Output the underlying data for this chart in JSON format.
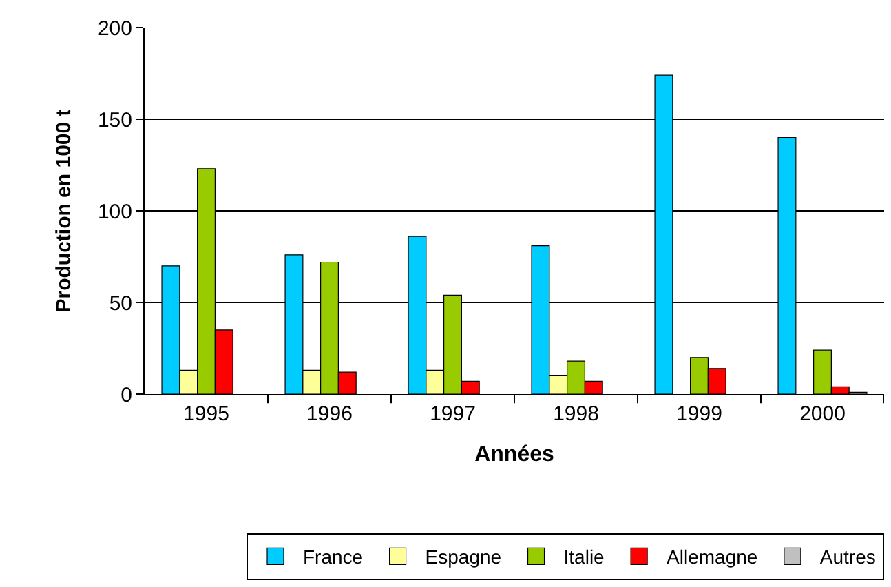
{
  "chart_data": {
    "type": "bar",
    "xlabel": "Années",
    "ylabel": "Production en 1000 t",
    "categories": [
      "1995",
      "1996",
      "1997",
      "1998",
      "1999",
      "2000"
    ],
    "series": [
      {
        "name": "France",
        "color": "#00ccff",
        "values": [
          70,
          76,
          86,
          81,
          174,
          140
        ]
      },
      {
        "name": "Espagne",
        "color": "#ffff99",
        "values": [
          13,
          13,
          13,
          10,
          null,
          null
        ]
      },
      {
        "name": "Italie",
        "color": "#99cc00",
        "values": [
          123,
          72,
          54,
          18,
          20,
          24
        ]
      },
      {
        "name": "Allemagne",
        "color": "#ff0000",
        "values": [
          35,
          12,
          7,
          7,
          14,
          4
        ]
      },
      {
        "name": "Autres",
        "color": "#c0c0c0",
        "values": [
          null,
          null,
          null,
          null,
          null,
          1
        ]
      }
    ],
    "ylim": [
      0,
      200
    ],
    "yticks": [
      0,
      50,
      100,
      150,
      200
    ],
    "grid": "y",
    "legend": "bottom"
  }
}
